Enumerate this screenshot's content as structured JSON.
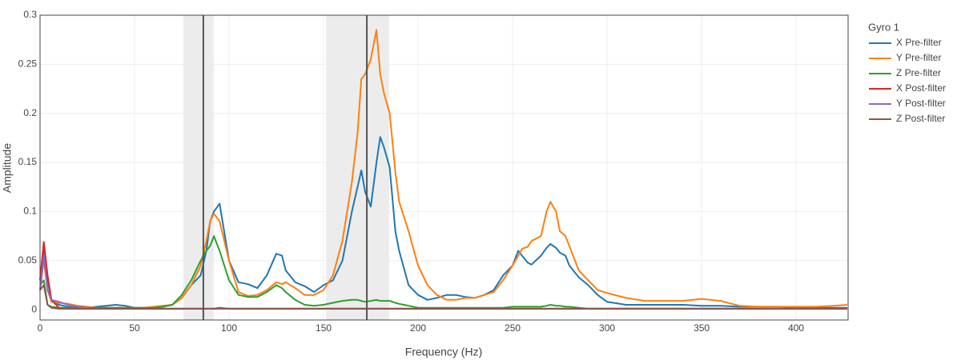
{
  "chart_data": {
    "type": "line",
    "xlabel": "Frequency (Hz)",
    "ylabel": "Amplitude",
    "legend_title": "Gyro 1",
    "legend": "right",
    "grid": true,
    "xlim": [
      0,
      427.5
    ],
    "ylim": [
      -0.0105,
      0.3
    ],
    "xticks": [
      0,
      50,
      100,
      150,
      200,
      250,
      300,
      350,
      400
    ],
    "yticks": [
      0,
      0.05,
      0.1,
      0.15,
      0.2,
      0.25,
      0.3
    ],
    "bands": [
      [
        75.8,
        91.9
      ],
      [
        151.3,
        184.7
      ]
    ],
    "vlines": [
      86.4,
      172.9
    ],
    "x": [
      0,
      2,
      4,
      6,
      10,
      15,
      20,
      25,
      30,
      35,
      40,
      45,
      50,
      55,
      60,
      65,
      70,
      75,
      80,
      85,
      88,
      90,
      92,
      95,
      100,
      105,
      110,
      115,
      120,
      125,
      128,
      130,
      135,
      140,
      145,
      150,
      155,
      160,
      165,
      168,
      170,
      172,
      175,
      178,
      180,
      182,
      185,
      188,
      190,
      195,
      200,
      205,
      210,
      215,
      220,
      225,
      230,
      235,
      240,
      245,
      250,
      253,
      255,
      258,
      260,
      265,
      268,
      270,
      273,
      275,
      278,
      280,
      285,
      290,
      295,
      300,
      310,
      320,
      330,
      340,
      350,
      360,
      370,
      380,
      390,
      400,
      410,
      420,
      427
    ],
    "series": [
      {
        "name": "X Pre-filter",
        "color": "#1f77b4",
        "values": [
          0.03,
          0.06,
          0.03,
          0.01,
          0.005,
          0.003,
          0.002,
          0.002,
          0.003,
          0.004,
          0.005,
          0.004,
          0.002,
          0.002,
          0.002,
          0.003,
          0.005,
          0.012,
          0.025,
          0.035,
          0.06,
          0.09,
          0.1,
          0.108,
          0.05,
          0.028,
          0.026,
          0.022,
          0.035,
          0.057,
          0.055,
          0.04,
          0.028,
          0.024,
          0.018,
          0.025,
          0.03,
          0.05,
          0.1,
          0.125,
          0.142,
          0.12,
          0.105,
          0.15,
          0.176,
          0.165,
          0.145,
          0.08,
          0.06,
          0.025,
          0.015,
          0.01,
          0.012,
          0.015,
          0.015,
          0.013,
          0.012,
          0.015,
          0.02,
          0.035,
          0.045,
          0.06,
          0.055,
          0.048,
          0.046,
          0.055,
          0.063,
          0.067,
          0.063,
          0.058,
          0.055,
          0.045,
          0.033,
          0.025,
          0.015,
          0.008,
          0.005,
          0.005,
          0.005,
          0.005,
          0.004,
          0.004,
          0.003,
          0.003,
          0.003,
          0.002,
          0.002,
          0.002,
          0.002
        ]
      },
      {
        "name": "Y Pre-filter",
        "color": "#ff7f0e",
        "values": [
          0.02,
          0.05,
          0.02,
          0.008,
          0.007,
          0.006,
          0.004,
          0.003,
          0.002,
          0.002,
          0.002,
          0.002,
          0.002,
          0.002,
          0.003,
          0.004,
          0.005,
          0.012,
          0.025,
          0.045,
          0.07,
          0.09,
          0.098,
          0.09,
          0.05,
          0.018,
          0.014,
          0.015,
          0.02,
          0.028,
          0.026,
          0.028,
          0.022,
          0.015,
          0.015,
          0.02,
          0.035,
          0.07,
          0.13,
          0.18,
          0.235,
          0.24,
          0.255,
          0.285,
          0.24,
          0.22,
          0.2,
          0.14,
          0.11,
          0.08,
          0.045,
          0.025,
          0.015,
          0.01,
          0.01,
          0.012,
          0.012,
          0.015,
          0.018,
          0.03,
          0.045,
          0.055,
          0.062,
          0.064,
          0.07,
          0.075,
          0.1,
          0.11,
          0.1,
          0.08,
          0.075,
          0.065,
          0.04,
          0.03,
          0.02,
          0.017,
          0.012,
          0.009,
          0.009,
          0.009,
          0.011,
          0.009,
          0.004,
          0.003,
          0.003,
          0.003,
          0.003,
          0.004,
          0.005
        ]
      },
      {
        "name": "Z Pre-filter",
        "color": "#2ca02c",
        "values": [
          0.025,
          0.03,
          0.005,
          0.003,
          0.002,
          0.002,
          0.002,
          0.002,
          0.002,
          0.002,
          0.002,
          0.002,
          0.002,
          0.002,
          0.002,
          0.003,
          0.005,
          0.015,
          0.03,
          0.05,
          0.06,
          0.065,
          0.075,
          0.06,
          0.03,
          0.015,
          0.013,
          0.013,
          0.018,
          0.025,
          0.022,
          0.018,
          0.01,
          0.005,
          0.004,
          0.005,
          0.007,
          0.009,
          0.01,
          0.01,
          0.009,
          0.008,
          0.009,
          0.01,
          0.009,
          0.009,
          0.009,
          0.007,
          0.006,
          0.004,
          0.002,
          0.002,
          0.002,
          0.002,
          0.002,
          0.002,
          0.002,
          0.002,
          0.002,
          0.002,
          0.003,
          0.003,
          0.003,
          0.003,
          0.003,
          0.003,
          0.004,
          0.005,
          0.004,
          0.004,
          0.003,
          0.003,
          0.002,
          0.001,
          0.001,
          0.001,
          0.001,
          0.001,
          0.001,
          0.001,
          0.001,
          0.001,
          0.001,
          0.001,
          0.001,
          0.001,
          0.001,
          0.001,
          0.001
        ]
      },
      {
        "name": "X Post-filter",
        "color": "#d62728",
        "values": [
          0.03,
          0.069,
          0.035,
          0.01,
          0.002,
          0.001,
          0.001,
          0.001,
          0.001,
          0.001,
          0.001,
          0.001,
          0.001,
          0.001,
          0.001,
          0.001,
          0.001,
          0.001,
          0.001,
          0.001,
          0.001,
          0.001,
          0.001,
          0.001,
          0.001,
          0.001,
          0.001,
          0.001,
          0.001,
          0.001,
          0.001,
          0.001,
          0.001,
          0.001,
          0.001,
          0.001,
          0.001,
          0.001,
          0.001,
          0.001,
          0.001,
          0.001,
          0.001,
          0.001,
          0.001,
          0.001,
          0.001,
          0.001,
          0.001,
          0.001,
          0.001,
          0.001,
          0.001,
          0.001,
          0.001,
          0.001,
          0.001,
          0.001,
          0.001,
          0.001,
          0.001,
          0.001,
          0.001,
          0.001,
          0.001,
          0.001,
          0.001,
          0.001,
          0.001,
          0.001,
          0.001,
          0.001,
          0.001,
          0.001,
          0.001,
          0.001,
          0.001,
          0.001,
          0.001,
          0.001,
          0.001,
          0.001,
          0.001,
          0.001,
          0.001,
          0.001,
          0.001,
          0.001,
          0.001
        ]
      },
      {
        "name": "Y Post-filter",
        "color": "#9467bd",
        "values": [
          0.02,
          0.055,
          0.02,
          0.01,
          0.008,
          0.005,
          0.003,
          0.002,
          0.001,
          0.001,
          0.001,
          0.001,
          0.001,
          0.001,
          0.001,
          0.001,
          0.001,
          0.001,
          0.001,
          0.001,
          0.001,
          0.001,
          0.001,
          0.001,
          0.001,
          0.001,
          0.001,
          0.001,
          0.001,
          0.001,
          0.001,
          0.001,
          0.001,
          0.001,
          0.001,
          0.001,
          0.001,
          0.001,
          0.001,
          0.001,
          0.001,
          0.001,
          0.001,
          0.001,
          0.001,
          0.001,
          0.001,
          0.001,
          0.001,
          0.001,
          0.001,
          0.001,
          0.001,
          0.001,
          0.001,
          0.001,
          0.001,
          0.001,
          0.001,
          0.001,
          0.001,
          0.001,
          0.001,
          0.001,
          0.001,
          0.001,
          0.001,
          0.001,
          0.001,
          0.001,
          0.001,
          0.001,
          0.001,
          0.001,
          0.001,
          0.001,
          0.001,
          0.001,
          0.001,
          0.001,
          0.001,
          0.001,
          0.001,
          0.001,
          0.001,
          0.001,
          0.001,
          0.001,
          0.001
        ]
      },
      {
        "name": "Z Post-filter",
        "color": "#8c564b",
        "values": [
          0.02,
          0.025,
          0.005,
          0.002,
          0.001,
          0.001,
          0.001,
          0.001,
          0.001,
          0.001,
          0.001,
          0.001,
          0.001,
          0.001,
          0.001,
          0.001,
          0.001,
          0.001,
          0.001,
          0.001,
          0.001,
          0.001,
          0.001,
          0.002,
          0.001,
          0.001,
          0.001,
          0.001,
          0.001,
          0.001,
          0.001,
          0.001,
          0.001,
          0.001,
          0.001,
          0.001,
          0.001,
          0.001,
          0.001,
          0.001,
          0.001,
          0.001,
          0.001,
          0.001,
          0.001,
          0.001,
          0.001,
          0.001,
          0.001,
          0.001,
          0.001,
          0.001,
          0.001,
          0.001,
          0.001,
          0.001,
          0.001,
          0.001,
          0.001,
          0.001,
          0.001,
          0.001,
          0.001,
          0.001,
          0.001,
          0.001,
          0.001,
          0.001,
          0.001,
          0.001,
          0.001,
          0.001,
          0.001,
          0.001,
          0.001,
          0.001,
          0.001,
          0.001,
          0.001,
          0.001,
          0.001,
          0.001,
          0.001,
          0.001,
          0.001,
          0.001,
          0.001,
          0.001,
          0.001
        ]
      }
    ]
  }
}
